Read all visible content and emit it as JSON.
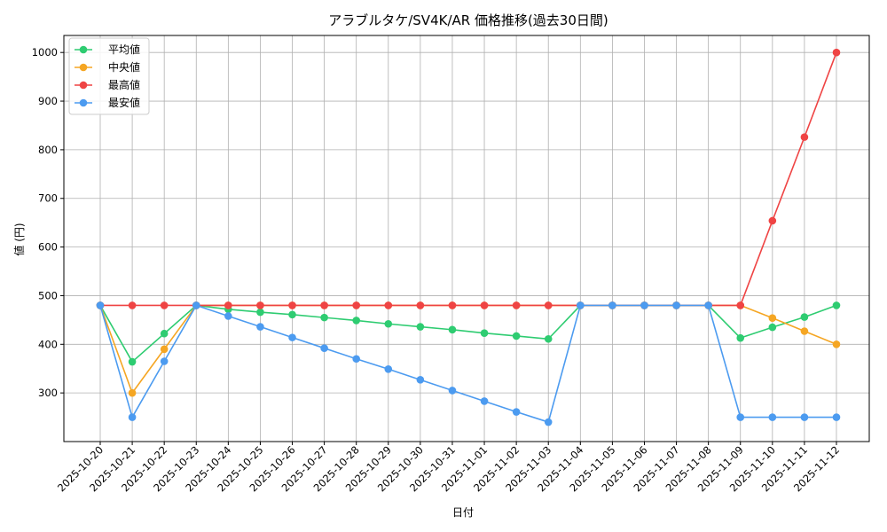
{
  "chart_data": {
    "type": "line",
    "title": "アラブルタケ/SV4K/AR 価格推移(過去30日間)",
    "xlabel": "日付",
    "ylabel": "値 (円)",
    "ylim": [
      200,
      1035
    ],
    "yticks": [
      300,
      400,
      500,
      600,
      700,
      800,
      900,
      1000
    ],
    "grid": true,
    "legend_position": "top-left",
    "categories": [
      "2025-10-20",
      "2025-10-21",
      "2025-10-22",
      "2025-10-23",
      "2025-10-24",
      "2025-10-25",
      "2025-10-26",
      "2025-10-27",
      "2025-10-28",
      "2025-10-29",
      "2025-10-30",
      "2025-10-31",
      "2025-11-01",
      "2025-11-02",
      "2025-11-03",
      "2025-11-04",
      "2025-11-05",
      "2025-11-06",
      "2025-11-07",
      "2025-11-08",
      "2025-11-09",
      "2025-11-10",
      "2025-11-11",
      "2025-11-12"
    ],
    "series": [
      {
        "name": "平均値",
        "color": "#2ecc71",
        "values": [
          480,
          364,
          422,
          480,
          472,
          466,
          461,
          455,
          449,
          442,
          436,
          430,
          423,
          417,
          411,
          480,
          480,
          480,
          480,
          480,
          413,
          435,
          456,
          480
        ]
      },
      {
        "name": "中央値",
        "color": "#f5a623",
        "values": [
          480,
          300,
          390,
          480,
          480,
          480,
          480,
          480,
          480,
          480,
          480,
          480,
          480,
          480,
          480,
          480,
          480,
          480,
          480,
          480,
          480,
          454,
          427,
          400
        ]
      },
      {
        "name": "最高値",
        "color": "#ef4444",
        "values": [
          480,
          480,
          480,
          480,
          480,
          480,
          480,
          480,
          480,
          480,
          480,
          480,
          480,
          480,
          480,
          480,
          480,
          480,
          480,
          480,
          480,
          654,
          826,
          1000
        ]
      },
      {
        "name": "最安値",
        "color": "#4c9bf0",
        "values": [
          480,
          250,
          365,
          480,
          458,
          436,
          414,
          392,
          370,
          349,
          327,
          305,
          283,
          261,
          240,
          480,
          480,
          480,
          480,
          480,
          250,
          250,
          250,
          250
        ]
      }
    ]
  }
}
